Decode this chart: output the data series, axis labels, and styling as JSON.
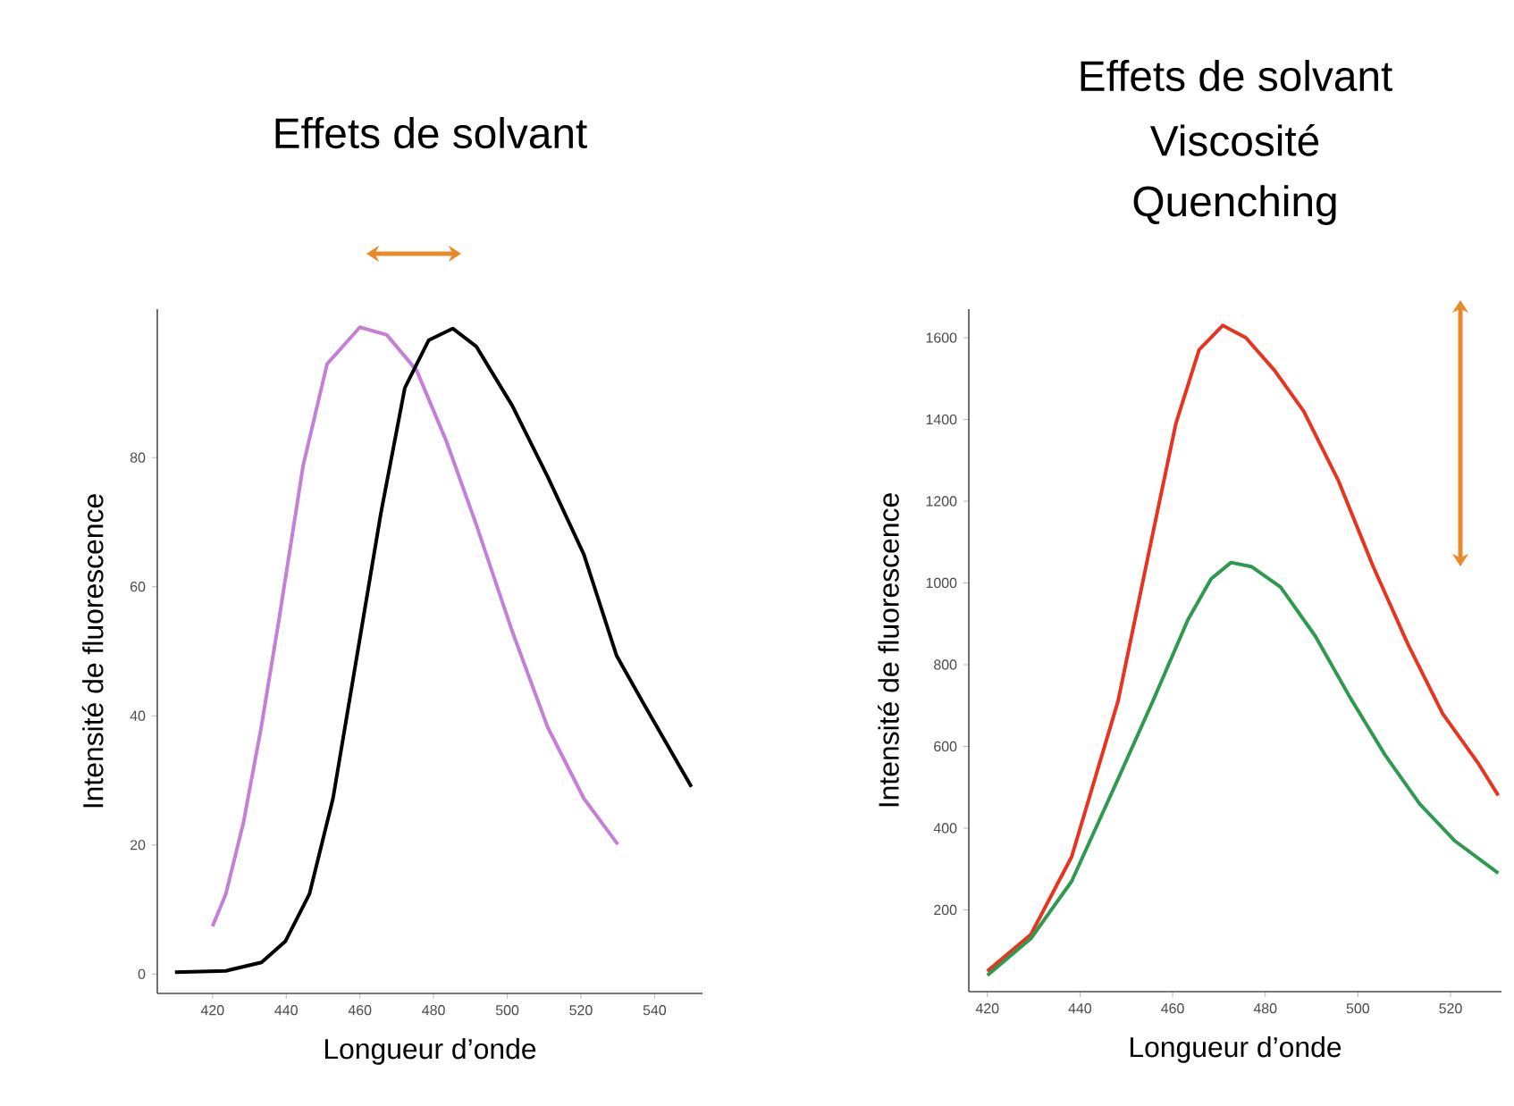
{
  "chart_data": [
    {
      "type": "line",
      "title": "Effets de solvant",
      "xlabel": "Longueur d’onde",
      "ylabel": "Intensité de fluorescence",
      "xlim": [
        405,
        553
      ],
      "ylim": [
        -3,
        103
      ],
      "xticks": [
        420,
        440,
        460,
        480,
        500,
        520,
        540
      ],
      "yticks": [
        0,
        20,
        40,
        60,
        80
      ],
      "marker": "none",
      "line_style": "solid",
      "series": [
        {
          "color": "#c47fd6",
          "x": [
            420,
            423.6,
            428.4,
            433.2,
            438,
            444.6,
            451.1,
            460,
            467.3,
            475.4,
            483.5,
            491.6,
            501.4,
            511,
            520.8,
            530
          ],
          "values": [
            7.4,
            12.4,
            23.5,
            38.2,
            54.8,
            78.8,
            94.5,
            100.2,
            99,
            93.5,
            82.5,
            69.6,
            53,
            38.2,
            27.2,
            20.1
          ]
        },
        {
          "color": "#000000",
          "x": [
            409.8,
            423.6,
            433.3,
            439.8,
            446.3,
            452.7,
            459.2,
            465.7,
            472.2,
            478.7,
            485.2,
            491.6,
            501.4,
            511,
            520.8,
            529.7,
            537,
            550
          ],
          "values": [
            0.3,
            0.5,
            1.8,
            5.1,
            12.4,
            27.2,
            49.3,
            71.4,
            90.8,
            98.2,
            100,
            97.2,
            88,
            77,
            65,
            49.3,
            41.9,
            29
          ]
        }
      ]
    },
    {
      "type": "line",
      "title": "Effets de solvant",
      "subtitle": "Viscosité Quenching",
      "xlabel": "Longueur d’onde",
      "ylabel": "Intensité de fluorescence",
      "xlim": [
        416,
        531
      ],
      "ylim": [
        0,
        1670
      ],
      "xticks": [
        420,
        440,
        460,
        480,
        500,
        520
      ],
      "yticks": [
        200,
        400,
        600,
        800,
        1000,
        1200,
        1400,
        1600
      ],
      "marker": "none",
      "line_style": "solid",
      "series": [
        {
          "color": "#e8331f",
          "x": [
            420,
            429.4,
            438.2,
            448.2,
            455.7,
            460.7,
            465.7,
            470.8,
            475.8,
            482,
            488.3,
            495.8,
            503.3,
            510.8,
            518.3,
            525.9,
            530.3
          ],
          "values": [
            50,
            140,
            330,
            710,
            1120,
            1390,
            1570,
            1630,
            1600,
            1520,
            1420,
            1250,
            1040,
            850,
            680,
            560,
            480
          ]
        },
        {
          "color": "#2e9a50",
          "x": [
            420,
            429.4,
            438.2,
            448.2,
            455.7,
            463.3,
            468.3,
            472.6,
            477,
            483.3,
            490.8,
            498.3,
            505.8,
            513.3,
            520.8,
            530.3
          ],
          "values": [
            40,
            130,
            270,
            520,
            710,
            910,
            1010,
            1050,
            1040,
            990,
            870,
            720,
            580,
            460,
            370,
            290
          ]
        }
      ]
    }
  ]
}
